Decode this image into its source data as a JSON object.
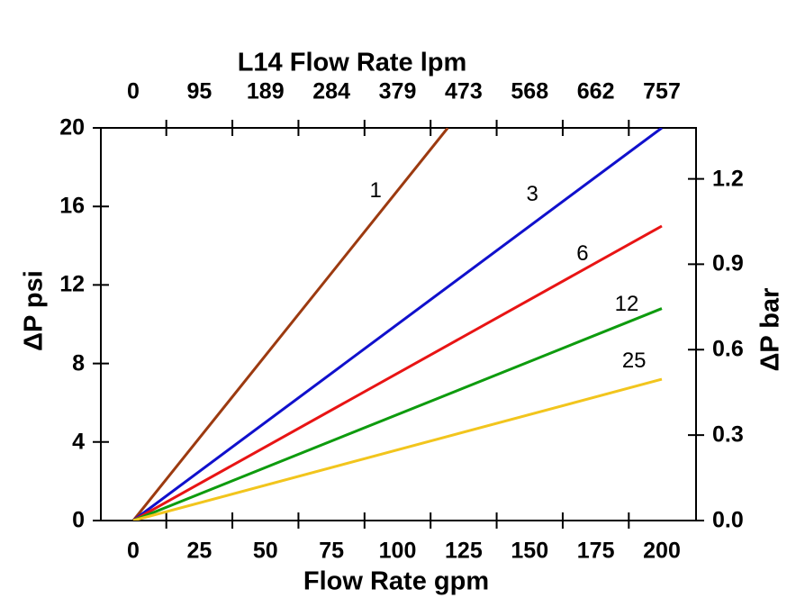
{
  "chart_data": {
    "type": "line",
    "title_top": "L14 Flow Rate lpm",
    "xlabel_bottom": "Flow Rate gpm",
    "ylabel_left": "ΔP psi",
    "ylabel_right": "ΔP bar",
    "axes": {
      "x_bottom": {
        "unit": "gpm",
        "tick_values": [
          0,
          25,
          50,
          75,
          100,
          125,
          150,
          175,
          200
        ],
        "tick_labels": [
          "0",
          "25",
          "50",
          "75",
          "100",
          "125",
          "150",
          "175",
          "200"
        ],
        "minor_tick_values": [
          12.5,
          37.5,
          62.5,
          87.5,
          112.5,
          137.5,
          162.5,
          187.5
        ],
        "range": [
          0,
          200
        ]
      },
      "x_top": {
        "unit": "lpm",
        "tick_labels": [
          "0",
          "95",
          "189",
          "284",
          "379",
          "473",
          "568",
          "662",
          "757"
        ],
        "aligned_with_gpm": [
          0,
          25,
          50,
          75,
          100,
          125,
          150,
          175,
          200
        ]
      },
      "y_left": {
        "unit": "psi",
        "tick_values": [
          0,
          4,
          8,
          12,
          16,
          20
        ],
        "tick_labels": [
          "0",
          "4",
          "8",
          "12",
          "16",
          "20"
        ],
        "range": [
          0,
          20
        ],
        "grid": false
      },
      "y_right": {
        "unit": "bar",
        "tick_values": [
          0.0,
          0.3,
          0.6,
          0.9,
          1.2
        ],
        "tick_labels": [
          "0.0",
          "0.3",
          "0.6",
          "0.9",
          "1.2"
        ]
      }
    },
    "unit_conversions": {
      "lpm_per_gpm": 3.785,
      "psi_per_bar": 14.504
    },
    "series": [
      {
        "name": "1",
        "color": "#9C3A10",
        "points_gpm_psi": [
          [
            0,
            0
          ],
          [
            119,
            20
          ]
        ],
        "slope_psi_per_gpm": 0.168,
        "label_at_gpm_psi": [
          91.7,
          16.8
        ]
      },
      {
        "name": "3",
        "color": "#1010CC",
        "points_gpm_psi": [
          [
            0,
            0
          ],
          [
            200,
            20
          ]
        ],
        "slope_psi_per_gpm": 0.1,
        "label_at_gpm_psi": [
          151.0,
          16.6
        ]
      },
      {
        "name": "6",
        "color": "#E81414",
        "points_gpm_psi": [
          [
            0,
            0
          ],
          [
            200,
            15
          ]
        ],
        "slope_psi_per_gpm": 0.075,
        "label_at_gpm_psi": [
          170.0,
          13.6
        ]
      },
      {
        "name": "12",
        "color": "#0E9B0E",
        "points_gpm_psi": [
          [
            0,
            0
          ],
          [
            200,
            10.8
          ]
        ],
        "slope_psi_per_gpm": 0.054,
        "label_at_gpm_psi": [
          186.7,
          11.0
        ]
      },
      {
        "name": "25",
        "color": "#F2C51D",
        "points_gpm_psi": [
          [
            0,
            0
          ],
          [
            200,
            7.2
          ]
        ],
        "slope_psi_per_gpm": 0.036,
        "label_at_gpm_psi": [
          189.5,
          8.1
        ]
      }
    ],
    "colors": {
      "background": "#ffffff",
      "axis": "#000000",
      "text": "#000000"
    },
    "legend_position": "inline-labels"
  }
}
